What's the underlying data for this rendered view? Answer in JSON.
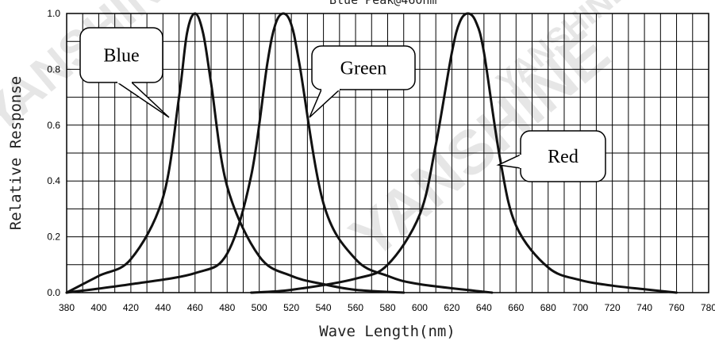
{
  "chart_data": {
    "type": "line",
    "top_text": "Blue Peak@460nm",
    "xlabel": "Wave Length(nm)",
    "ylabel": "Relative Response",
    "xlim": [
      380,
      780
    ],
    "ylim": [
      0,
      1.0
    ],
    "x_ticks": [
      380,
      400,
      420,
      440,
      460,
      480,
      500,
      520,
      540,
      560,
      580,
      600,
      620,
      640,
      660,
      680,
      700,
      720,
      740,
      760,
      780
    ],
    "y_ticks": [
      "0.0",
      "0.2",
      "0.4",
      "0.6",
      "0.8",
      "1.0"
    ],
    "grid": true,
    "watermark": "YANSHINE",
    "series": [
      {
        "name": "Blue",
        "x": [
          380,
          400,
          420,
          440,
          450,
          455,
          460,
          465,
          470,
          480,
          500,
          520,
          540,
          560,
          590
        ],
        "y": [
          0.0,
          0.06,
          0.12,
          0.34,
          0.7,
          0.93,
          1.0,
          0.93,
          0.75,
          0.38,
          0.13,
          0.06,
          0.03,
          0.01,
          0.0
        ]
      },
      {
        "name": "Green",
        "x": [
          380,
          420,
          460,
          480,
          495,
          505,
          510,
          515,
          520,
          525,
          540,
          560,
          580,
          600,
          645
        ],
        "y": [
          0.0,
          0.03,
          0.07,
          0.14,
          0.42,
          0.82,
          0.96,
          1.0,
          0.96,
          0.82,
          0.32,
          0.12,
          0.06,
          0.03,
          0.0
        ]
      },
      {
        "name": "Red",
        "x": [
          495,
          520,
          560,
          580,
          600,
          610,
          620,
          625,
          630,
          635,
          640,
          650,
          660,
          680,
          700,
          720,
          740,
          760
        ],
        "y": [
          0.0,
          0.01,
          0.05,
          0.1,
          0.28,
          0.53,
          0.86,
          0.97,
          1.0,
          0.97,
          0.86,
          0.48,
          0.24,
          0.09,
          0.045,
          0.025,
          0.012,
          0.0
        ]
      }
    ],
    "callouts": [
      {
        "label": "Blue",
        "series": "Blue"
      },
      {
        "label": "Green",
        "series": "Green"
      },
      {
        "label": "Red",
        "series": "Red"
      }
    ]
  }
}
